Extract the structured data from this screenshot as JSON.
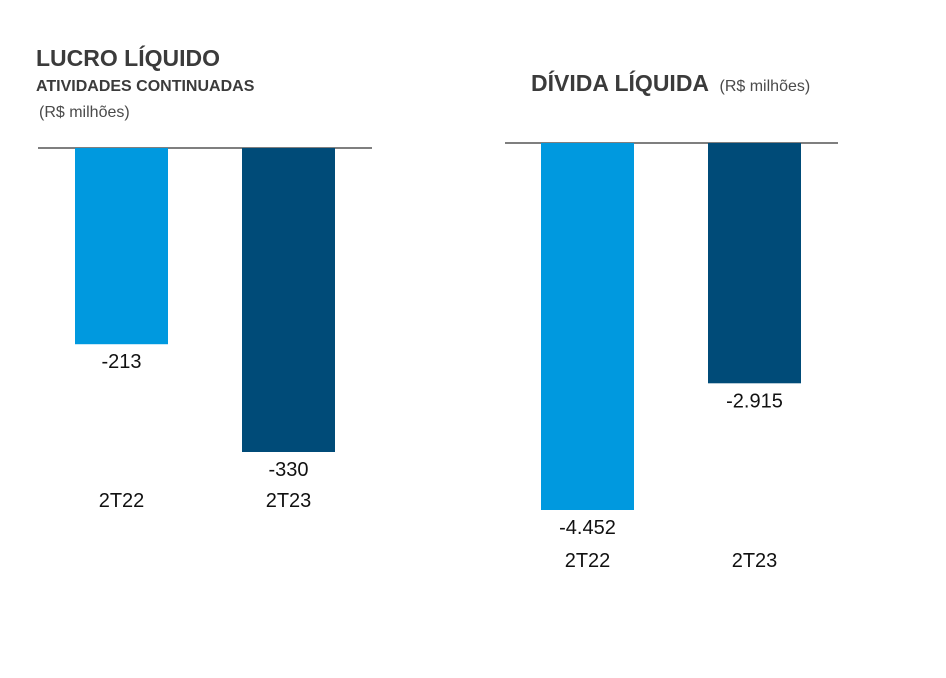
{
  "chart_data": [
    {
      "type": "bar",
      "title": "LUCRO LÍQUIDO",
      "subtitle": "ATIVIDADES CONTINUADAS",
      "unit": "(R$ milhões)",
      "categories": [
        "2T22",
        "2T23"
      ],
      "values": [
        -213,
        -330
      ],
      "value_labels": [
        "-213",
        "-330"
      ],
      "colors": [
        "#0099DF",
        "#004B78"
      ],
      "ylim": [
        -350,
        0
      ],
      "grid": false
    },
    {
      "type": "bar",
      "title": "DÍVIDA LÍQUIDA",
      "unit": "(R$ milhões)",
      "categories": [
        "2T22",
        "2T23"
      ],
      "values": [
        -4452,
        -2915
      ],
      "value_labels": [
        "-4.452",
        "-2.915"
      ],
      "colors": [
        "#0099DF",
        "#004B78"
      ],
      "ylim": [
        -4500,
        0
      ],
      "grid": false
    }
  ]
}
